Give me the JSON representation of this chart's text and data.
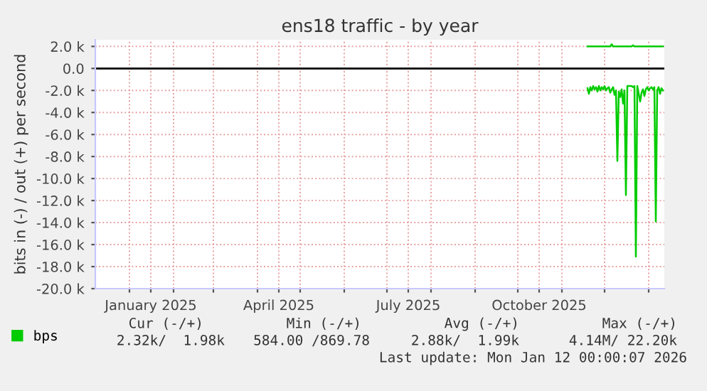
{
  "chart_data": {
    "type": "line",
    "title": "ens18 traffic - by year",
    "ylabel": "bits in (-) / out (+) per second",
    "xlim": [
      "2024-12-08",
      "2026-01-12"
    ],
    "ylim": [
      -20,
      2.6
    ],
    "xticks": [
      {
        "value": "2025-01-01",
        "label": null
      },
      {
        "value": "2025-01-16",
        "label": "January 2025"
      },
      {
        "value": "2025-02-01",
        "label": null
      },
      {
        "value": "2025-03-01",
        "label": null
      },
      {
        "value": "2025-04-01",
        "label": null
      },
      {
        "value": "2025-04-16",
        "label": "April 2025"
      },
      {
        "value": "2025-05-01",
        "label": null
      },
      {
        "value": "2025-06-01",
        "label": null
      },
      {
        "value": "2025-07-01",
        "label": null
      },
      {
        "value": "2025-07-16",
        "label": "July 2025"
      },
      {
        "value": "2025-08-01",
        "label": null
      },
      {
        "value": "2025-09-01",
        "label": null
      },
      {
        "value": "2025-10-01",
        "label": null
      },
      {
        "value": "2025-10-16",
        "label": "October 2025"
      },
      {
        "value": "2025-11-01",
        "label": null
      },
      {
        "value": "2025-12-01",
        "label": null
      },
      {
        "value": "2026-01-01",
        "label": null
      }
    ],
    "yticks": [
      {
        "value": 2,
        "label": "2.0 k"
      },
      {
        "value": 0,
        "label": "0.0"
      },
      {
        "value": -2,
        "label": "-2.0 k"
      },
      {
        "value": -4,
        "label": "-4.0 k"
      },
      {
        "value": -6,
        "label": "-6.0 k"
      },
      {
        "value": -8,
        "label": "-8.0 k"
      },
      {
        "value": -10,
        "label": "-10.0 k"
      },
      {
        "value": -12,
        "label": "-12.0 k"
      },
      {
        "value": -14,
        "label": "-14.0 k"
      },
      {
        "value": -16,
        "label": "-16.0 k"
      },
      {
        "value": -18,
        "label": "-18.0 k"
      },
      {
        "value": -20,
        "label": "-20.0 k"
      }
    ],
    "grid": true,
    "legend": "bottom left",
    "ref_lines": [
      {
        "axis": "y",
        "value": 0,
        "label": null,
        "color": "#000000"
      }
    ],
    "series": [
      {
        "name": "bps",
        "color": "#00cc00",
        "x": [
          "2025-11-19",
          "2025-12-05",
          "2025-12-06",
          "2025-12-07",
          "2025-12-20",
          "2025-12-21",
          "2025-12-22",
          "2026-01-11"
        ],
        "values": [
          2.0,
          2.0,
          2.2,
          2.0,
          2.0,
          2.1,
          2.0,
          2.0
        ]
      },
      {
        "color": "#00cc00",
        "x": [
          "2025-11-19",
          "2025-11-20",
          "2025-11-21",
          "2025-11-22",
          "2025-11-23",
          "2025-11-24",
          "2025-11-25",
          "2025-11-26",
          "2025-11-27",
          "2025-11-28",
          "2025-11-29",
          "2025-11-30",
          "2025-12-01",
          "2025-12-02",
          "2025-12-03",
          "2025-12-04",
          "2025-12-05",
          "2025-12-06",
          "2025-12-07",
          "2025-12-08",
          "2025-12-09",
          "2025-12-10",
          "2025-12-11",
          "2025-12-12",
          "2025-12-13",
          "2025-12-14",
          "2025-12-15",
          "2025-12-16",
          "2025-12-17",
          "2025-12-18",
          "2025-12-19",
          "2025-12-20",
          "2025-12-21",
          "2025-12-22",
          "2025-12-23",
          "2025-12-24",
          "2025-12-25",
          "2025-12-26",
          "2025-12-27",
          "2025-12-28",
          "2025-12-29",
          "2025-12-30",
          "2025-12-31",
          "2026-01-01",
          "2026-01-02",
          "2026-01-03",
          "2026-01-04",
          "2026-01-05",
          "2026-01-06",
          "2026-01-07",
          "2026-01-08",
          "2026-01-09",
          "2026-01-10",
          "2026-01-11"
        ],
        "values": [
          -1.8,
          -2.3,
          -1.7,
          -2.0,
          -1.6,
          -1.9,
          -1.7,
          -2.1,
          -1.6,
          -2.0,
          -1.7,
          -1.9,
          -1.6,
          -2.0,
          -1.8,
          -1.7,
          -2.2,
          -1.9,
          -1.7,
          -2.4,
          -2.0,
          -8.4,
          -2.1,
          -2.6,
          -1.9,
          -3.2,
          -2.0,
          -11.5,
          -1.6,
          -1.6,
          -1.6,
          -1.6,
          -1.7,
          -1.6,
          -17.1,
          -1.6,
          -2.3,
          -3.0,
          -2.2,
          -1.9,
          -2.5,
          -1.9,
          -1.7,
          -2.0,
          -1.8,
          -1.7,
          -1.9,
          -1.7,
          -13.9,
          -2.0,
          -1.7,
          -2.3,
          -1.8,
          -2.0
        ]
      }
    ],
    "annotations": [
      "Cur (-/+)",
      "Min (-/+)",
      "Avg (-/+)",
      "Max (-/+)",
      "2.32k/  1.98k",
      "584.00 /869.78",
      "2.88k/  1.99k",
      "4.14M/ 22.20k",
      "Last update: Mon Jan 12 00:00:07 2026"
    ]
  }
}
